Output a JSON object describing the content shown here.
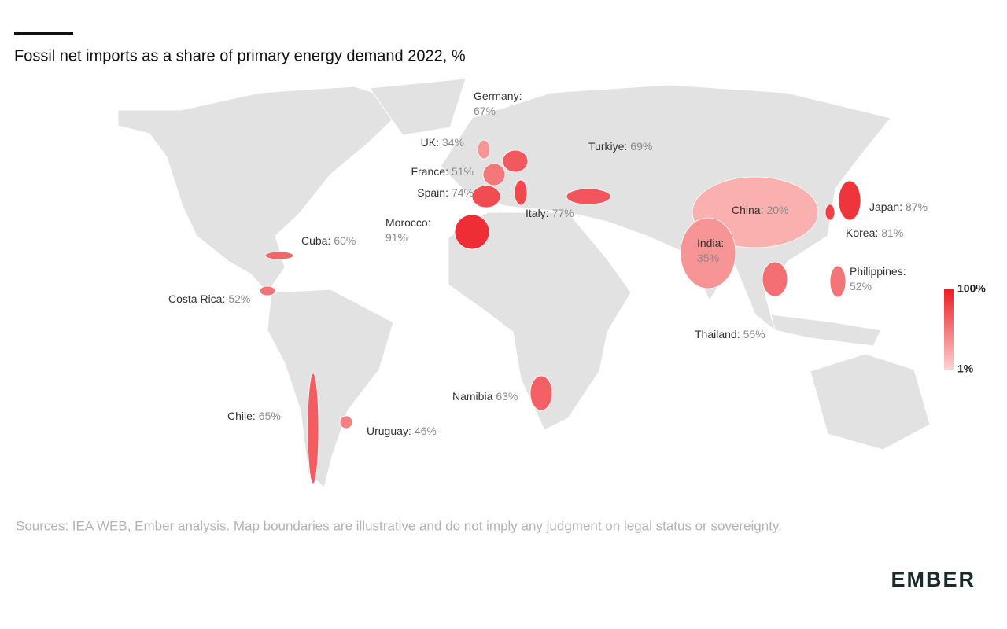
{
  "chart_data": {
    "type": "choropleth",
    "title": "Fossil net imports as a share of primary energy demand 2022, %",
    "countries": [
      {
        "name": "UK:",
        "value": 34,
        "value_label": "34%"
      },
      {
        "name": "Germany:",
        "value": 67,
        "value_label": "67%"
      },
      {
        "name": "France:",
        "value": 51,
        "value_label": "51%"
      },
      {
        "name": "Spain:",
        "value": 74,
        "value_label": "74%"
      },
      {
        "name": "Morocco:",
        "value": 91,
        "value_label": "91%"
      },
      {
        "name": "Italy:",
        "value": 77,
        "value_label": "77%"
      },
      {
        "name": "Turkiye:",
        "value": 69,
        "value_label": "69%"
      },
      {
        "name": "Cuba:",
        "value": 60,
        "value_label": "60%"
      },
      {
        "name": "Costa Rica:",
        "value": 52,
        "value_label": "52%"
      },
      {
        "name": "Chile:",
        "value": 65,
        "value_label": "65%"
      },
      {
        "name": "Uruguay:",
        "value": 46,
        "value_label": "46%"
      },
      {
        "name": "Namibia",
        "value": 63,
        "value_label": "63%"
      },
      {
        "name": "China:",
        "value": 20,
        "value_label": "20%"
      },
      {
        "name": "India:",
        "value": 35,
        "value_label": "35%"
      },
      {
        "name": "Japan:",
        "value": 87,
        "value_label": "87%"
      },
      {
        "name": "Korea:",
        "value": 81,
        "value_label": "81%"
      },
      {
        "name": "Philippines:",
        "value": 52,
        "value_label": "52%"
      },
      {
        "name": "Thailand:",
        "value": 55,
        "value_label": "55%"
      }
    ],
    "legend_ticks": [
      {
        "value": 100,
        "label": "100%"
      },
      {
        "value": 1,
        "label": "1%"
      }
    ],
    "colors": [
      "#fbd3d0",
      "#ee1c25"
    ],
    "source": "Sources: IEA WEB, Ember analysis. Map boundaries are illustrative and do not imply any judgment on legal status or sovereignty.",
    "logo": "EMBER"
  }
}
